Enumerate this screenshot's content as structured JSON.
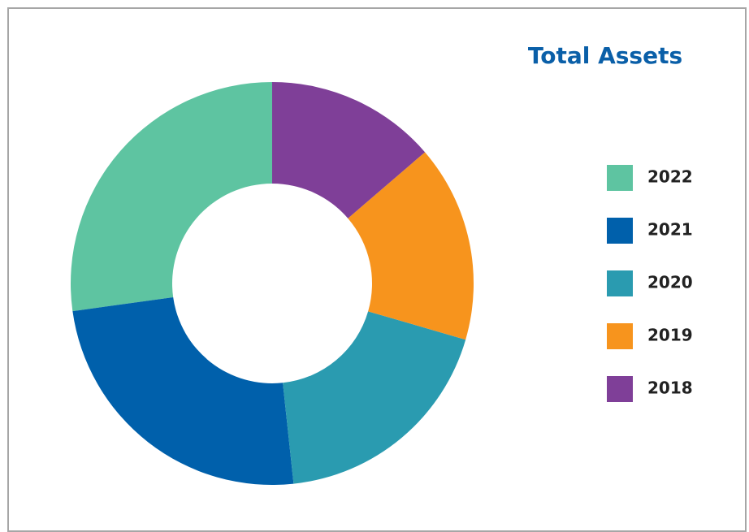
{
  "chart_data": {
    "type": "donut",
    "title": "Total Assets",
    "categories": [
      "2022",
      "2021",
      "2020",
      "2019",
      "2018"
    ],
    "values": [
      27.2,
      24.5,
      18.8,
      15.8,
      13.7
    ],
    "colors": [
      "#5ec4a1",
      "#0060ab",
      "#2a9bb0",
      "#f7941d",
      "#7f3f98"
    ],
    "legend": "right"
  }
}
